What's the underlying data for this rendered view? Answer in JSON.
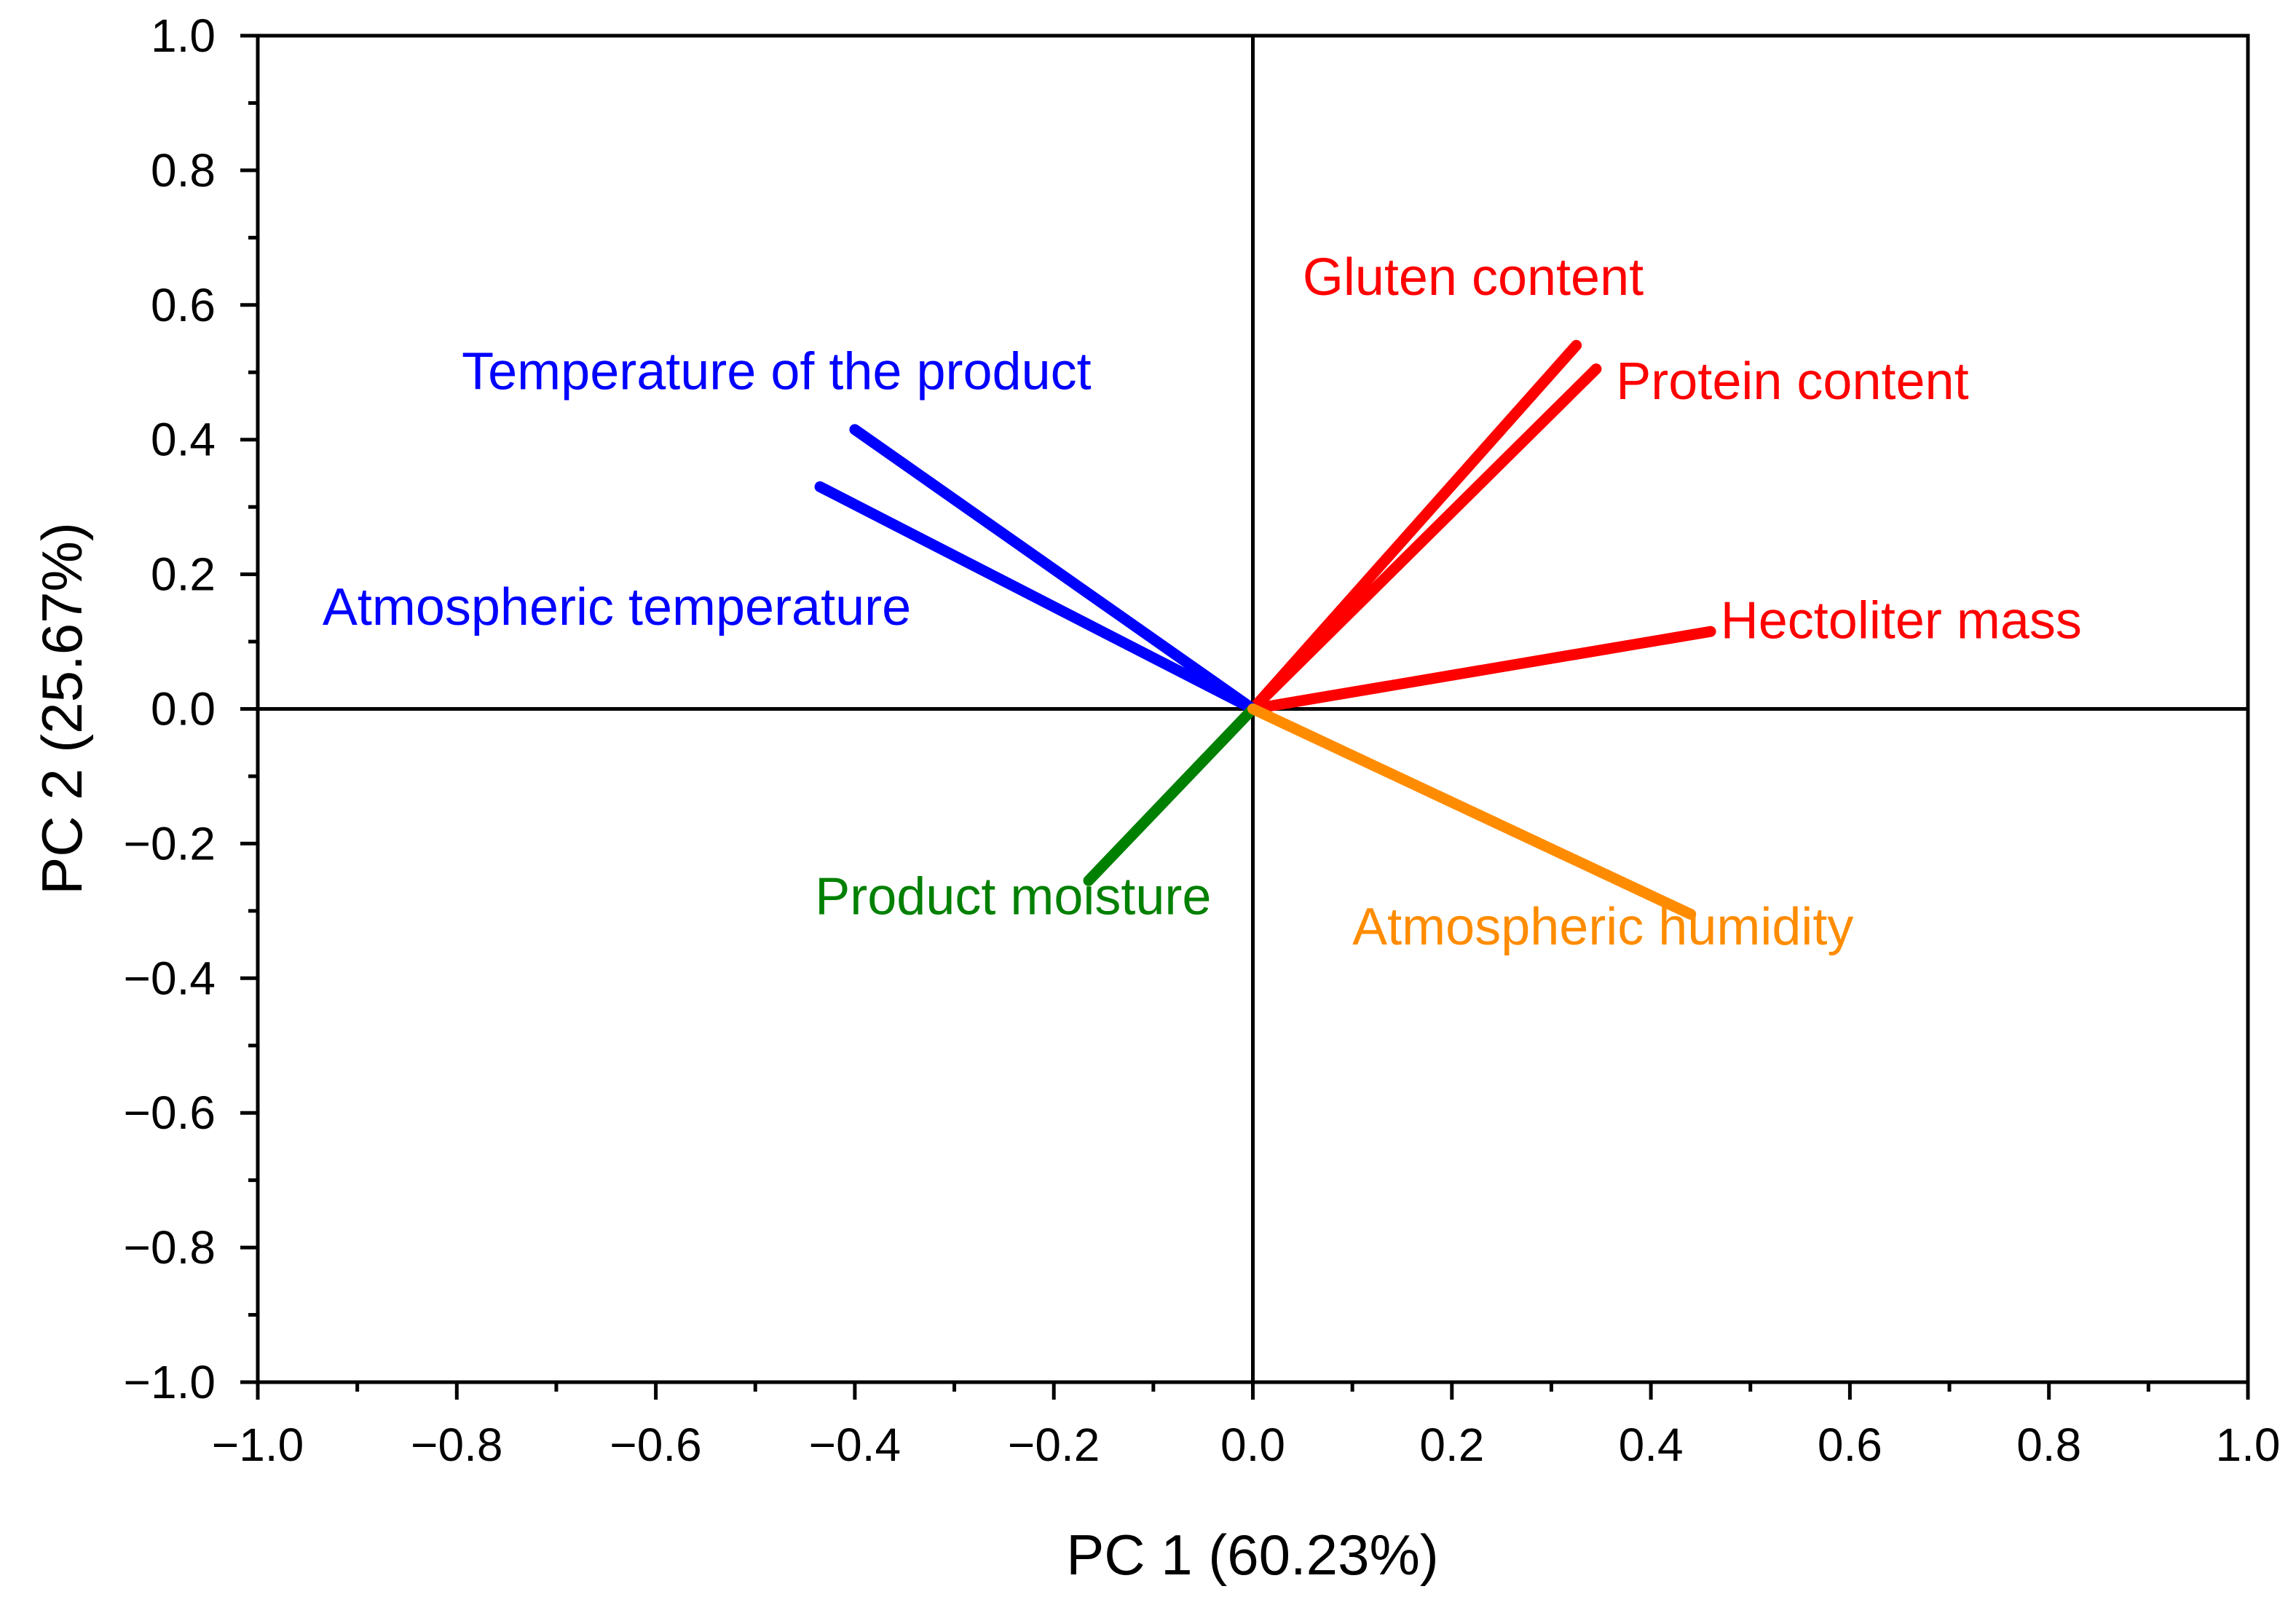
{
  "chart_data": {
    "type": "biplot",
    "title": "",
    "xlabel": "PC 1 (60.23%)",
    "ylabel": "PC 2 (25.67%)",
    "xlim": [
      -1.0,
      1.0
    ],
    "ylim": [
      -1.0,
      1.0
    ],
    "x_major_ticks": [
      -1.0,
      -0.8,
      -0.6,
      -0.4,
      -0.2,
      0.0,
      0.2,
      0.4,
      0.6,
      0.8,
      1.0
    ],
    "y_major_ticks": [
      -1.0,
      -0.8,
      -0.6,
      -0.4,
      -0.2,
      0.0,
      0.2,
      0.4,
      0.6,
      0.8,
      1.0
    ],
    "x_tick_labels": [
      "−1.0",
      "−0.8",
      "−0.6",
      "−0.4",
      "−0.2",
      "0.0",
      "0.2",
      "0.4",
      "0.6",
      "0.8",
      "1.0"
    ],
    "y_tick_labels": [
      "−1.0",
      "−0.8",
      "−0.6",
      "−0.4",
      "−0.2",
      "0.0",
      "0.2",
      "0.4",
      "0.6",
      "0.8",
      "1.0"
    ],
    "minor_tick_step": 0.1,
    "grid": false,
    "series": [
      {
        "name": "Gluten content",
        "x": 0.325,
        "y": 0.54,
        "color": "#ff0000",
        "label_x": 0.05,
        "label_y": 0.615
      },
      {
        "name": "Protein content",
        "x": 0.345,
        "y": 0.505,
        "color": "#ff0000",
        "label_x": 0.365,
        "label_y": 0.46
      },
      {
        "name": "Hectoliter mass",
        "x": 0.46,
        "y": 0.115,
        "color": "#ff0000",
        "label_x": 0.47,
        "label_y": 0.105
      },
      {
        "name": "Temperature of the product",
        "x": -0.4,
        "y": 0.415,
        "color": "#0000ff",
        "label_x": -0.795,
        "label_y": 0.475
      },
      {
        "name": "Atmospheric temperature",
        "x": -0.435,
        "y": 0.33,
        "color": "#0000ff",
        "label_x": -0.935,
        "label_y": 0.125
      },
      {
        "name": "Product moisture",
        "x": -0.165,
        "y": -0.255,
        "color": "#008000",
        "label_x": -0.44,
        "label_y": -0.305
      },
      {
        "name": "Atmospheric humidity",
        "x": 0.44,
        "y": -0.305,
        "color": "#ff8c00",
        "label_x": 0.1,
        "label_y": -0.35
      }
    ]
  }
}
